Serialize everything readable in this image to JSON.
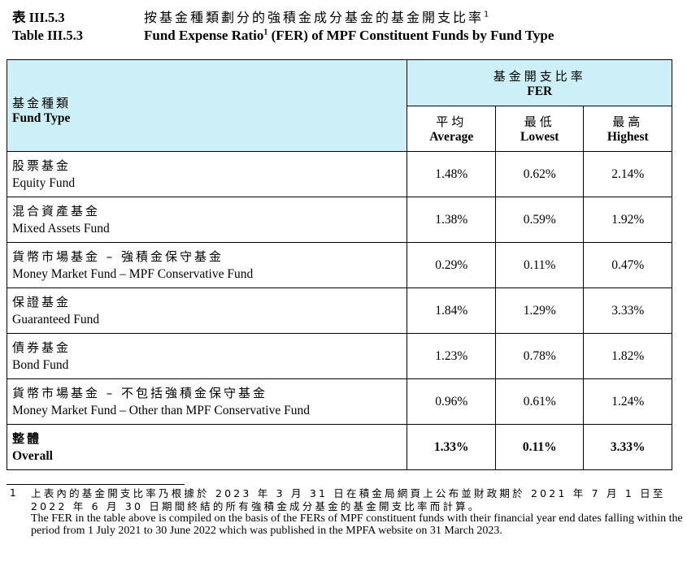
{
  "title": {
    "label_zh": "表 III.5.3",
    "text_zh": "按基金種類劃分的強積金成分基金的基金開支比率",
    "sup_zh": "1",
    "label_en": "Table III.5.3",
    "text_en": "Fund Expense Ratio",
    "sup_en": "1",
    "text_en_rest": " (FER) of MPF Constituent Funds by Fund Type"
  },
  "table": {
    "header": {
      "type_zh": "基金種類",
      "type_en": "Fund Type",
      "fer_zh": "基金開支比率",
      "fer_en": "FER",
      "avg_zh": "平均",
      "avg_en": "Average",
      "low_zh": "最低",
      "low_en": "Lowest",
      "high_zh": "最高",
      "high_en": "Highest"
    },
    "rows": [
      {
        "zh": "股票基金",
        "en": "Equity Fund",
        "avg": "1.48%",
        "low": "0.62%",
        "high": "2.14%"
      },
      {
        "zh": "混合資產基金",
        "en": "Mixed Assets Fund",
        "avg": "1.38%",
        "low": "0.59%",
        "high": "1.92%"
      },
      {
        "zh": "貨幣市場基金 – 強積金保守基金",
        "en": "Money Market Fund – MPF Conservative Fund",
        "avg": "0.29%",
        "low": "0.11%",
        "high": "0.47%"
      },
      {
        "zh": "保證基金",
        "en": "Guaranteed Fund",
        "avg": "1.84%",
        "low": "1.29%",
        "high": "3.33%"
      },
      {
        "zh": "債券基金",
        "en": "Bond Fund",
        "avg": "1.23%",
        "low": "0.78%",
        "high": "1.82%"
      },
      {
        "zh": "貨幣市場基金 – 不包括強積金保守基金",
        "en": "Money Market Fund – Other than MPF Conservative Fund",
        "avg": "0.96%",
        "low": "0.61%",
        "high": "1.24%"
      }
    ],
    "total": {
      "zh": "整體",
      "en": "Overall",
      "avg": "1.33%",
      "low": "0.11%",
      "high": "3.33%"
    }
  },
  "footnote": {
    "number": "1",
    "zh": "上表內的基金開支比率乃根據於 2023 年 3 月 31 日在積金局網頁上公布並財政期於 2021 年 7 月 1 日至 2022 年 6 月 30 日期間終結的所有強積金成分基金的基金開支比率而計算。",
    "en": "The FER in the table above is compiled on the basis of the FERs of MPF constituent funds with their financial year end dates falling within the period from 1 July 2021 to 30 June 2022 which was published in the MPFA website on 31 March 2023."
  }
}
